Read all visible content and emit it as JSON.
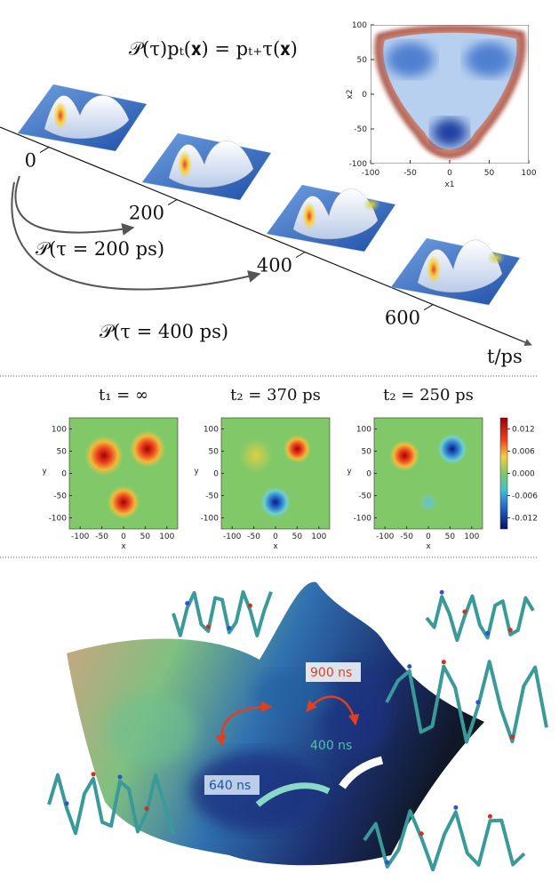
{
  "equation": "𝒫(τ)pₜ(𝐱) = pₜ₊τ(𝐱)",
  "time_axis": {
    "ticks": [
      0,
      200,
      400,
      600
    ],
    "label": "t/ps"
  },
  "propagators": [
    "𝒫(τ = 200 ps)",
    "𝒫(τ = 400 ps)"
  ],
  "inset": {
    "xlabel": "x1",
    "ylabel": "x2",
    "xlim": [
      -100,
      100
    ],
    "ylim": [
      -100,
      100
    ],
    "xticks": [
      -100,
      -50,
      0,
      50,
      100
    ],
    "yticks": [
      -100,
      -50,
      0,
      50,
      100
    ]
  },
  "maps": {
    "titles": [
      "t₁ = ∞",
      "t₂ = 370 ps",
      "t₂ = 250 ps"
    ],
    "xlabel": "x",
    "ylabel": "y",
    "xlim": [
      -125,
      125
    ],
    "ylim": [
      -125,
      125
    ],
    "xticks": [
      -100,
      -50,
      0,
      50,
      100
    ],
    "yticks": [
      -100,
      -50,
      0,
      50,
      100
    ],
    "colorbar": {
      "lim": [
        -0.015,
        0.015
      ],
      "ticks": [
        0.012,
        0.006,
        {
          "value": 0,
          "label": "0.000"
        },
        -0.006,
        -0.012
      ]
    }
  },
  "landscape": {
    "timescales": [
      "900 ns",
      "400 ns",
      "640 ns"
    ]
  }
}
